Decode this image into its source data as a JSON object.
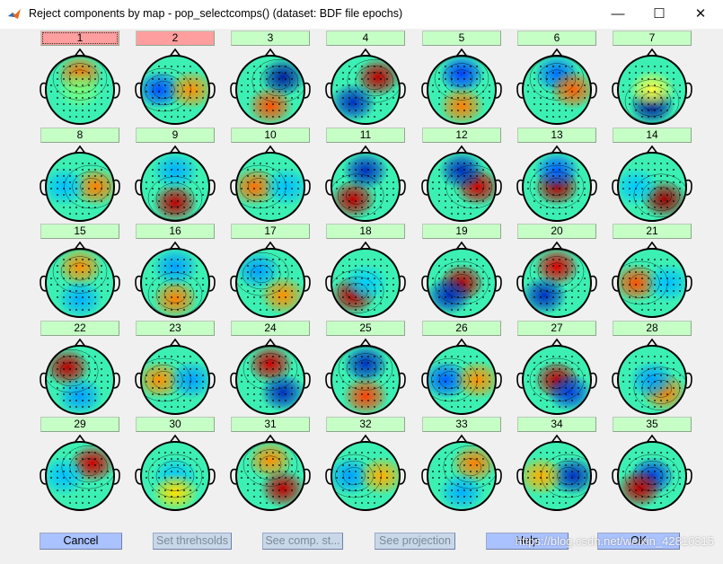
{
  "window": {
    "title": "Reject components by map - pop_selectcomps() (dataset: BDF file epochs)",
    "minimize_glyph": "—",
    "maximize_glyph": "☐",
    "close_glyph": "✕",
    "app_icon": "matlab-icon"
  },
  "components": [
    {
      "label": "1",
      "status": "reject",
      "focused": true,
      "spots": [
        {
          "pos": "top",
          "c": "#ff7000"
        },
        {
          "pos": "center",
          "c": "#7aff7a"
        }
      ]
    },
    {
      "label": "2",
      "status": "reject",
      "focused": false,
      "spots": [
        {
          "pos": "left",
          "c": "#0050ff"
        },
        {
          "pos": "right",
          "c": "#ff9000"
        }
      ]
    },
    {
      "label": "3",
      "status": "accept",
      "focused": false,
      "spots": [
        {
          "pos": "top-right",
          "c": "#0020a0"
        },
        {
          "pos": "bottom",
          "c": "#ff5000"
        }
      ]
    },
    {
      "label": "4",
      "status": "accept",
      "focused": false,
      "spots": [
        {
          "pos": "top-right",
          "c": "#c00000"
        },
        {
          "pos": "bottom-left",
          "c": "#0030c0"
        }
      ]
    },
    {
      "label": "5",
      "status": "accept",
      "focused": false,
      "spots": [
        {
          "pos": "top",
          "c": "#0040ff"
        },
        {
          "pos": "bottom",
          "c": "#ff8000"
        }
      ]
    },
    {
      "label": "6",
      "status": "accept",
      "focused": false,
      "spots": [
        {
          "pos": "top",
          "c": "#0070ff"
        },
        {
          "pos": "right",
          "c": "#ff6000"
        }
      ]
    },
    {
      "label": "7",
      "status": "accept",
      "focused": false,
      "spots": [
        {
          "pos": "bottom",
          "c": "#0020a0"
        },
        {
          "pos": "center",
          "c": "#ffff40"
        }
      ]
    },
    {
      "label": "8",
      "status": "accept",
      "focused": false,
      "spots": [
        {
          "pos": "right",
          "c": "#ff8000"
        },
        {
          "pos": "left",
          "c": "#00c0ff"
        }
      ]
    },
    {
      "label": "9",
      "status": "accept",
      "focused": false,
      "spots": [
        {
          "pos": "bottom",
          "c": "#c00000"
        },
        {
          "pos": "top",
          "c": "#00b0ff"
        }
      ]
    },
    {
      "label": "10",
      "status": "accept",
      "focused": false,
      "spots": [
        {
          "pos": "left",
          "c": "#ff7000"
        },
        {
          "pos": "right",
          "c": "#00c0ff"
        }
      ]
    },
    {
      "label": "11",
      "status": "accept",
      "focused": false,
      "spots": [
        {
          "pos": "bottom-left",
          "c": "#c00000"
        },
        {
          "pos": "top",
          "c": "#0030c0"
        }
      ]
    },
    {
      "label": "12",
      "status": "accept",
      "focused": false,
      "spots": [
        {
          "pos": "right",
          "c": "#d00000"
        },
        {
          "pos": "top",
          "c": "#0030c0"
        }
      ]
    },
    {
      "label": "13",
      "status": "accept",
      "focused": false,
      "spots": [
        {
          "pos": "center",
          "c": "#b00000"
        },
        {
          "pos": "top",
          "c": "#0060ff"
        }
      ]
    },
    {
      "label": "14",
      "status": "accept",
      "focused": false,
      "spots": [
        {
          "pos": "bottom-right",
          "c": "#a00000"
        },
        {
          "pos": "left",
          "c": "#00c8ff"
        }
      ]
    },
    {
      "label": "15",
      "status": "accept",
      "focused": false,
      "spots": [
        {
          "pos": "top",
          "c": "#ff9000"
        },
        {
          "pos": "bottom",
          "c": "#00b0ff"
        }
      ]
    },
    {
      "label": "16",
      "status": "accept",
      "focused": false,
      "spots": [
        {
          "pos": "bottom",
          "c": "#ff8000"
        },
        {
          "pos": "top",
          "c": "#00a0ff"
        }
      ]
    },
    {
      "label": "17",
      "status": "accept",
      "focused": false,
      "spots": [
        {
          "pos": "top-left",
          "c": "#00a0ff"
        },
        {
          "pos": "bottom-right",
          "c": "#ff9000"
        }
      ]
    },
    {
      "label": "18",
      "status": "accept",
      "focused": false,
      "spots": [
        {
          "pos": "bottom-left",
          "c": "#c00000"
        },
        {
          "pos": "center",
          "c": "#00d0ff"
        }
      ]
    },
    {
      "label": "19",
      "status": "accept",
      "focused": false,
      "spots": [
        {
          "pos": "center",
          "c": "#c00000"
        },
        {
          "pos": "bottom-left",
          "c": "#0030c0"
        }
      ]
    },
    {
      "label": "20",
      "status": "accept",
      "focused": false,
      "spots": [
        {
          "pos": "top",
          "c": "#e00000"
        },
        {
          "pos": "bottom-left",
          "c": "#0030c0"
        }
      ]
    },
    {
      "label": "21",
      "status": "accept",
      "focused": false,
      "spots": [
        {
          "pos": "left",
          "c": "#ff5000"
        },
        {
          "pos": "right",
          "c": "#00c0ff"
        }
      ]
    },
    {
      "label": "22",
      "status": "accept",
      "focused": false,
      "spots": [
        {
          "pos": "top-left",
          "c": "#c00000"
        },
        {
          "pos": "bottom",
          "c": "#00a0ff"
        }
      ]
    },
    {
      "label": "23",
      "status": "accept",
      "focused": false,
      "spots": [
        {
          "pos": "left",
          "c": "#ff9000"
        },
        {
          "pos": "right",
          "c": "#00a0ff"
        }
      ]
    },
    {
      "label": "24",
      "status": "accept",
      "focused": false,
      "spots": [
        {
          "pos": "top",
          "c": "#d00000"
        },
        {
          "pos": "bottom-right",
          "c": "#0030c0"
        }
      ]
    },
    {
      "label": "25",
      "status": "accept",
      "focused": false,
      "spots": [
        {
          "pos": "top",
          "c": "#0030c0"
        },
        {
          "pos": "bottom",
          "c": "#ff4000"
        }
      ]
    },
    {
      "label": "26",
      "status": "accept",
      "focused": false,
      "spots": [
        {
          "pos": "left",
          "c": "#0060ff"
        },
        {
          "pos": "right",
          "c": "#ff9000"
        }
      ]
    },
    {
      "label": "27",
      "status": "accept",
      "focused": false,
      "spots": [
        {
          "pos": "center",
          "c": "#c00000"
        },
        {
          "pos": "bottom-right",
          "c": "#0040e0"
        }
      ]
    },
    {
      "label": "28",
      "status": "accept",
      "focused": false,
      "spots": [
        {
          "pos": "bottom-right",
          "c": "#ff8000"
        },
        {
          "pos": "center",
          "c": "#00a0ff"
        }
      ]
    },
    {
      "label": "29",
      "status": "accept",
      "focused": false,
      "spots": [
        {
          "pos": "top-right",
          "c": "#d00000"
        },
        {
          "pos": "left",
          "c": "#00c0ff"
        }
      ]
    },
    {
      "label": "30",
      "status": "accept",
      "focused": false,
      "spots": [
        {
          "pos": "center",
          "c": "#00c8ff"
        },
        {
          "pos": "bottom",
          "c": "#ffe000"
        }
      ]
    },
    {
      "label": "31",
      "status": "accept",
      "focused": false,
      "spots": [
        {
          "pos": "top",
          "c": "#ff9000"
        },
        {
          "pos": "bottom-right",
          "c": "#c00000"
        }
      ]
    },
    {
      "label": "32",
      "status": "accept",
      "focused": false,
      "spots": [
        {
          "pos": "left",
          "c": "#00a0ff"
        },
        {
          "pos": "right",
          "c": "#ffb000"
        }
      ]
    },
    {
      "label": "33",
      "status": "accept",
      "focused": false,
      "spots": [
        {
          "pos": "top-right",
          "c": "#ff8000"
        },
        {
          "pos": "bottom",
          "c": "#00b0ff"
        }
      ]
    },
    {
      "label": "34",
      "status": "accept",
      "focused": false,
      "spots": [
        {
          "pos": "right",
          "c": "#0030c0"
        },
        {
          "pos": "left",
          "c": "#ffb000"
        }
      ]
    },
    {
      "label": "35",
      "status": "accept",
      "focused": false,
      "spots": [
        {
          "pos": "center",
          "c": "#0040e0"
        },
        {
          "pos": "bottom-left",
          "c": "#c00000"
        }
      ]
    }
  ],
  "buttons": {
    "cancel": "Cancel",
    "set_thresholds": "Set threhsolds",
    "see_comp_stats": "See comp. st...",
    "see_projection": "See projection",
    "help": "Help",
    "ok": "OK"
  },
  "watermark": "https://blog.csdn.net/weixin_42810315",
  "colors": {
    "accept_button": "#c6ffc6",
    "reject_button": "#ff9e9e",
    "primary_button": "#aac2ff",
    "disabled_button": "#c8d8e8",
    "client_background": "#f0f0f0",
    "map_base": "#3cf0b4"
  }
}
